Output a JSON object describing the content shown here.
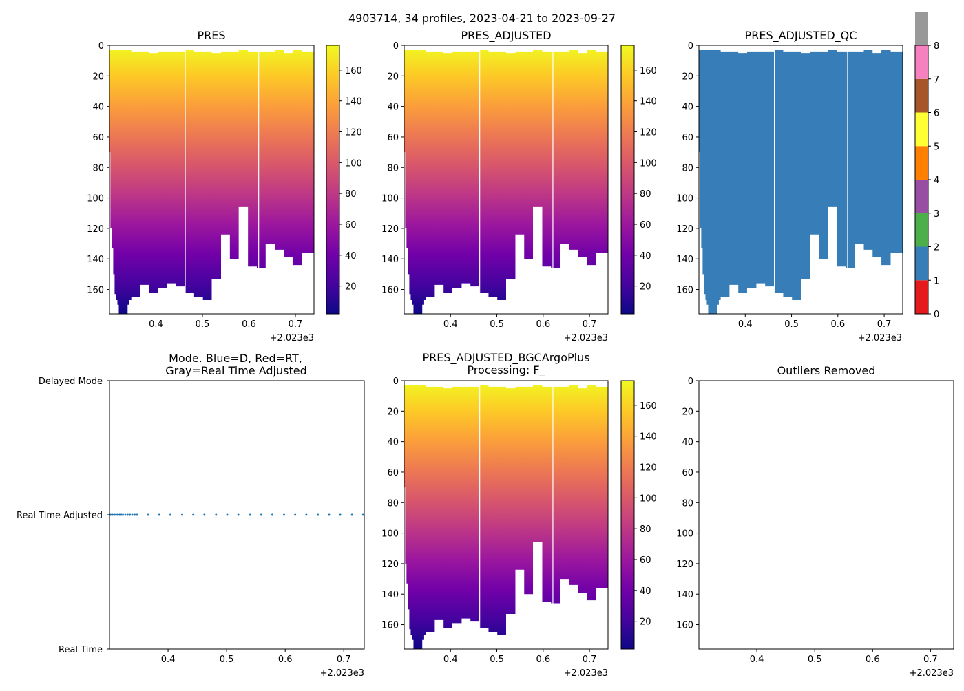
{
  "figure_title": "4903714, 34 profiles, 2023-04-21 to 2023-09-27",
  "chart_data": [
    {
      "id": "pres",
      "type": "heatmap",
      "title": "PRES",
      "x_offset_label": "+2.023e3",
      "xlim": [
        0.3,
        0.74
      ],
      "ylim": [
        176,
        0
      ],
      "xticks": [
        "0.4",
        "0.5",
        "0.6",
        "0.7"
      ],
      "yticks": [
        "0",
        "20",
        "40",
        "60",
        "80",
        "100",
        "120",
        "140",
        "160"
      ],
      "colormap": "plasma_r",
      "colorbar_range": [
        2,
        176
      ],
      "colorbar_ticks": [
        "20",
        "40",
        "60",
        "80",
        "100",
        "120",
        "140",
        "160"
      ]
    },
    {
      "id": "pres_adjusted",
      "type": "heatmap",
      "title": "PRES_ADJUSTED",
      "x_offset_label": "+2.023e3",
      "xlim": [
        0.3,
        0.74
      ],
      "ylim": [
        176,
        0
      ],
      "xticks": [
        "0.4",
        "0.5",
        "0.6",
        "0.7"
      ],
      "yticks": [
        "0",
        "20",
        "40",
        "60",
        "80",
        "100",
        "120",
        "140",
        "160"
      ],
      "colormap": "plasma_r",
      "colorbar_range": [
        2,
        176
      ],
      "colorbar_ticks": [
        "20",
        "40",
        "60",
        "80",
        "100",
        "120",
        "140",
        "160"
      ]
    },
    {
      "id": "pres_adjusted_qc",
      "type": "heatmap",
      "title": "PRES_ADJUSTED_QC",
      "x_offset_label": "+2.023e3",
      "xlim": [
        0.3,
        0.74
      ],
      "ylim": [
        176,
        0
      ],
      "xticks": [
        "0.4",
        "0.5",
        "0.6",
        "0.7"
      ],
      "yticks": [
        "0",
        "20",
        "40",
        "60",
        "80",
        "100",
        "120",
        "140",
        "160"
      ],
      "qc_value": 1,
      "qc_color": "#377eb8",
      "colorbar_range": [
        0,
        8
      ],
      "colorbar_ticks": [
        "0",
        "1",
        "2",
        "3",
        "4",
        "5",
        "6",
        "7",
        "8"
      ],
      "qc_colors": [
        "#e41a1c",
        "#377eb8",
        "#4daf4a",
        "#984ea3",
        "#ff7f00",
        "#ffff33",
        "#a65628",
        "#f781bf",
        "#999999"
      ]
    },
    {
      "id": "mode",
      "type": "scatter",
      "title_line1": "Mode. Blue=D, Red=RT,",
      "title_line2": "Gray=Real Time Adjusted",
      "x_offset_label": "+2.023e3",
      "xlim": [
        0.3,
        0.735
      ],
      "xticks": [
        "0.4",
        "0.5",
        "0.6",
        "0.7"
      ],
      "ycategories": [
        "Real Time",
        "Real Time Adjusted",
        "Delayed Mode"
      ],
      "point_color": "#1f77b4",
      "x": [
        0.302,
        0.305,
        0.308,
        0.311,
        0.314,
        0.317,
        0.32,
        0.323,
        0.327,
        0.331,
        0.335,
        0.339,
        0.343,
        0.347,
        0.366,
        0.385,
        0.404,
        0.424,
        0.443,
        0.462,
        0.482,
        0.501,
        0.52,
        0.54,
        0.559,
        0.578,
        0.598,
        0.617,
        0.636,
        0.656,
        0.675,
        0.694,
        0.714,
        0.733
      ],
      "y": [
        "Real Time Adjusted",
        "Real Time Adjusted",
        "Real Time Adjusted",
        "Real Time Adjusted",
        "Real Time Adjusted",
        "Real Time Adjusted",
        "Real Time Adjusted",
        "Real Time Adjusted",
        "Real Time Adjusted",
        "Real Time Adjusted",
        "Real Time Adjusted",
        "Real Time Adjusted",
        "Real Time Adjusted",
        "Real Time Adjusted",
        "Real Time Adjusted",
        "Real Time Adjusted",
        "Real Time Adjusted",
        "Real Time Adjusted",
        "Real Time Adjusted",
        "Real Time Adjusted",
        "Real Time Adjusted",
        "Real Time Adjusted",
        "Real Time Adjusted",
        "Real Time Adjusted",
        "Real Time Adjusted",
        "Real Time Adjusted",
        "Real Time Adjusted",
        "Real Time Adjusted",
        "Real Time Adjusted",
        "Real Time Adjusted",
        "Real Time Adjusted",
        "Real Time Adjusted",
        "Real Time Adjusted",
        "Real Time Adjusted"
      ]
    },
    {
      "id": "bgc",
      "type": "heatmap",
      "title_line1": "PRES_ADJUSTED_BGCArgoPlus",
      "title_line2": "Processing: F_",
      "x_offset_label": "+2.023e3",
      "xlim": [
        0.3,
        0.74
      ],
      "ylim": [
        176,
        0
      ],
      "xticks": [
        "0.4",
        "0.5",
        "0.6",
        "0.7"
      ],
      "yticks": [
        "0",
        "20",
        "40",
        "60",
        "80",
        "100",
        "120",
        "140",
        "160"
      ],
      "colormap": "plasma_r",
      "colorbar_range": [
        2,
        176
      ],
      "colorbar_ticks": [
        "20",
        "40",
        "60",
        "80",
        "100",
        "120",
        "140",
        "160"
      ]
    },
    {
      "id": "outliers",
      "type": "scatter",
      "title": "Outliers Removed",
      "x_offset_label": "+2.023e3",
      "xlim": [
        0.3,
        0.74
      ],
      "ylim": [
        176,
        0
      ],
      "xticks": [
        "0.4",
        "0.5",
        "0.6",
        "0.7"
      ],
      "yticks": [
        "0",
        "20",
        "40",
        "60",
        "80",
        "100",
        "120",
        "140",
        "160"
      ],
      "x": [],
      "y": []
    }
  ],
  "profiles": {
    "x_start": [
      0.3,
      0.302,
      0.305,
      0.308,
      0.311,
      0.314,
      0.317,
      0.32,
      0.323,
      0.327,
      0.331,
      0.335,
      0.339,
      0.343,
      0.347,
      0.366,
      0.385,
      0.404,
      0.424,
      0.443,
      0.462,
      0.482,
      0.501,
      0.52,
      0.54,
      0.559,
      0.578,
      0.598,
      0.617,
      0.636,
      0.656,
      0.675,
      0.694,
      0.714
    ],
    "top_depth": [
      3,
      3,
      3,
      3,
      3,
      3,
      3,
      3,
      3,
      3,
      3,
      3,
      3,
      3,
      4,
      4,
      5,
      4,
      4,
      4,
      3,
      4,
      4,
      5,
      4,
      4,
      3,
      4,
      4,
      4,
      3,
      5,
      3,
      4
    ],
    "bottom_depth": [
      70,
      120,
      133,
      150,
      163,
      167,
      170,
      176,
      176,
      176,
      176,
      176,
      170,
      167,
      165,
      157,
      162,
      159,
      156,
      158,
      162,
      165,
      167,
      153,
      124,
      140,
      106,
      145,
      146,
      130,
      134,
      139,
      144,
      136
    ]
  }
}
